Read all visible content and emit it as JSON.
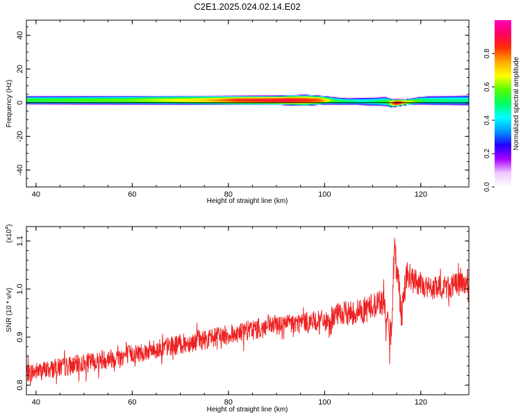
{
  "title": "C2E1.2025.024.02.14.E02",
  "chart_data": [
    {
      "type": "heatmap",
      "xlabel": "Height of straight line (km)",
      "ylabel": "Frequency (Hz)",
      "xlim": [
        38,
        130
      ],
      "ylim": [
        -50,
        49
      ],
      "xticks": [
        40,
        60,
        80,
        100,
        120
      ],
      "yticks": [
        40,
        20,
        0,
        -20,
        -40
      ],
      "colorbar": {
        "label": "Normalized spectral amplitude",
        "range": [
          0,
          1
        ],
        "ticks": [
          "0.0",
          "0.2",
          "0.4",
          "0.6",
          "0.8"
        ],
        "tick_values": [
          0.0,
          0.2,
          0.4,
          0.6,
          0.8
        ],
        "colormap": [
          "#ffffff",
          "#f0c8ff",
          "#aa00ff",
          "#2200ff",
          "#0099ff",
          "#00ffff",
          "#00ff60",
          "#55ff00",
          "#ffff00",
          "#ffaa00",
          "#ff3000",
          "#ff0060",
          "#ff00bb"
        ]
      },
      "band": {
        "center_freq_hz": [
          [
            38,
            1.6
          ],
          [
            100,
            1.6
          ],
          [
            104,
            0.9
          ],
          [
            113,
            0.8
          ],
          [
            114,
            -0.2
          ],
          [
            117,
            0.5
          ],
          [
            120,
            1.4
          ],
          [
            130,
            1.5
          ]
        ],
        "half_width_hz": [
          [
            38,
            2.5
          ],
          [
            90,
            2.8
          ],
          [
            96,
            3.4
          ],
          [
            100,
            2.6
          ],
          [
            105,
            2.0
          ],
          [
            113,
            2.8
          ],
          [
            117,
            1.8
          ],
          [
            122,
            2.7
          ],
          [
            130,
            3.0
          ]
        ],
        "peak_amplitude": [
          [
            38,
            0.55
          ],
          [
            60,
            0.6
          ],
          [
            75,
            0.72
          ],
          [
            82,
            0.85
          ],
          [
            92,
            0.9
          ],
          [
            99,
            0.82
          ],
          [
            102,
            0.55
          ],
          [
            108,
            0.45
          ],
          [
            113,
            0.55
          ],
          [
            115,
            0.95
          ],
          [
            117,
            0.7
          ],
          [
            121,
            0.5
          ],
          [
            130,
            0.48
          ]
        ]
      }
    },
    {
      "type": "line",
      "xlabel": "Height of straight line (km)",
      "ylabel": "SNR (10 * v/v)",
      "scale_label": "(x10",
      "scale_exponent": "4",
      "scale_suffix": ")",
      "xlim": [
        38,
        130
      ],
      "ylim": [
        0.78,
        1.13
      ],
      "xticks": [
        40,
        60,
        80,
        100,
        120
      ],
      "yticks": [
        0.8,
        0.9,
        1.0,
        1.1
      ],
      "ytick_labels": [
        "0.8",
        "0.9",
        "1.0",
        "1.1"
      ],
      "line_color": "#ee2222",
      "series": [
        {
          "trend": [
            [
              38,
              0.825
            ],
            [
              50,
              0.845
            ],
            [
              60,
              0.865
            ],
            [
              70,
              0.885
            ],
            [
              80,
              0.905
            ],
            [
              90,
              0.925
            ],
            [
              100,
              0.935
            ],
            [
              101,
              0.92
            ],
            [
              102,
              0.945
            ],
            [
              108,
              0.955
            ],
            [
              111,
              0.97
            ],
            [
              112,
              0.975
            ],
            [
              113,
              0.94
            ],
            [
              113.5,
              0.87
            ],
            [
              114,
              0.95
            ],
            [
              114.5,
              1.08
            ],
            [
              115,
              1.05
            ],
            [
              116,
              0.95
            ],
            [
              117,
              1.03
            ],
            [
              118,
              1.02
            ],
            [
              122,
              1.0
            ],
            [
              126,
              1.005
            ],
            [
              130,
              1.015
            ]
          ],
          "noise_amplitude": [
            [
              38,
              0.02
            ],
            [
              100,
              0.022
            ],
            [
              102,
              0.025
            ],
            [
              112,
              0.03
            ],
            [
              114,
              0.04
            ],
            [
              116,
              0.035
            ],
            [
              120,
              0.025
            ],
            [
              130,
              0.025
            ]
          ]
        }
      ]
    }
  ]
}
